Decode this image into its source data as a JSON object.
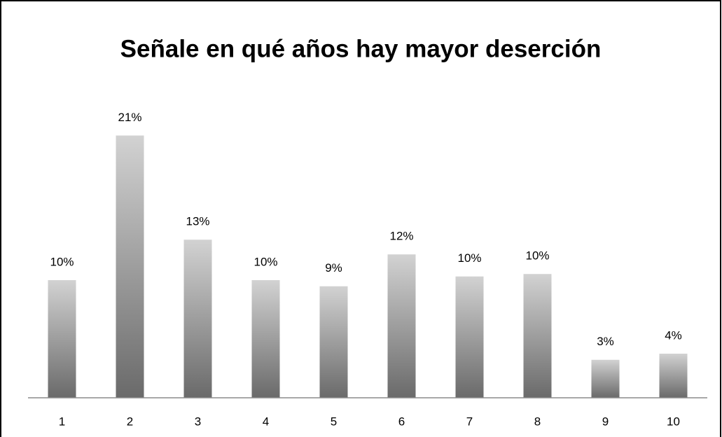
{
  "chart_data": {
    "type": "bar",
    "title": "Señale en qué años hay mayor deserción",
    "categories": [
      "1",
      "2",
      "3",
      "4",
      "5",
      "6",
      "7",
      "8",
      "9",
      "10"
    ],
    "values": [
      9.6,
      21.4,
      12.9,
      9.6,
      9.1,
      11.7,
      9.9,
      10.1,
      3.1,
      3.6
    ],
    "value_labels": [
      "10%",
      "21%",
      "13%",
      "10%",
      "9%",
      "12%",
      "10%",
      "10%",
      "3%",
      "4%"
    ],
    "gradient": [
      "#d2d2d2",
      "#6a6a6a"
    ],
    "ylim": [
      0,
      24
    ]
  }
}
